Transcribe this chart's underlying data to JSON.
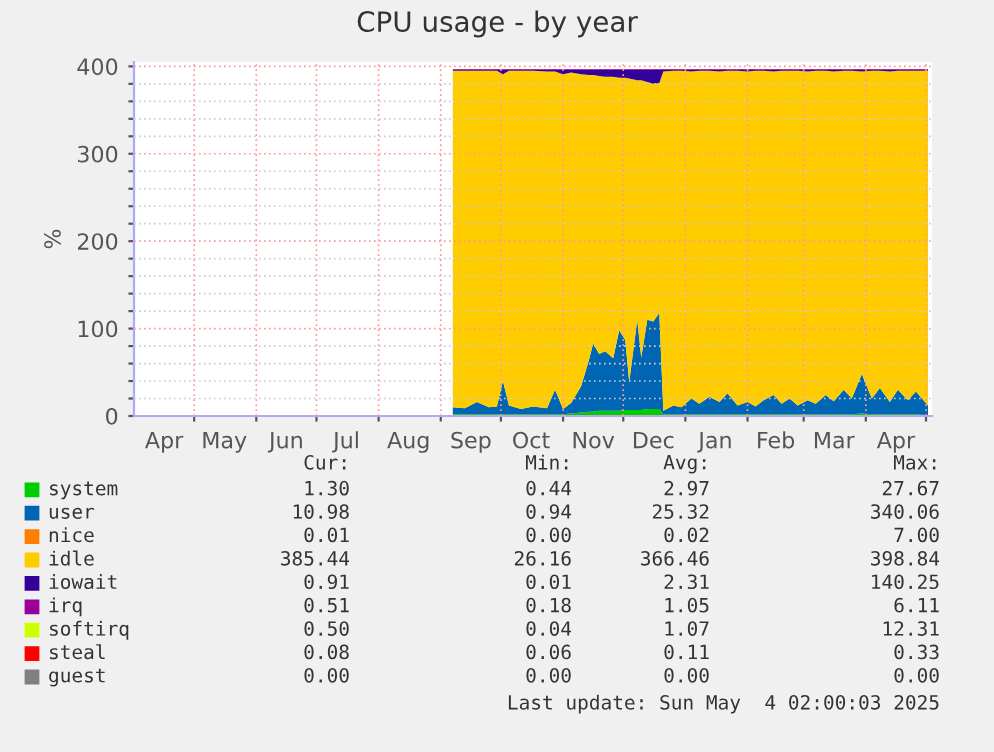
{
  "chart_data": {
    "type": "area",
    "stacked": true,
    "title": "CPU usage - by year",
    "ylabel": "%",
    "x": [
      "2024-09-07",
      "2024-09-13",
      "2024-09-19",
      "2024-09-25",
      "2024-09-29",
      "2024-10-02",
      "2024-10-05",
      "2024-10-11",
      "2024-10-17",
      "2024-10-24",
      "2024-10-28",
      "2024-11-01",
      "2024-11-05",
      "2024-11-10",
      "2024-11-14",
      "2024-11-16",
      "2024-11-19",
      "2024-11-22",
      "2024-11-26",
      "2024-11-29",
      "2024-12-02",
      "2024-12-04",
      "2024-12-08",
      "2024-12-10",
      "2024-12-13",
      "2024-12-16",
      "2024-12-19",
      "2024-12-21",
      "2024-12-26",
      "2024-12-30",
      "2025-01-04",
      "2025-01-08",
      "2025-01-13",
      "2025-01-18",
      "2025-01-22",
      "2025-01-27",
      "2025-02-01",
      "2025-02-05",
      "2025-02-09",
      "2025-02-14",
      "2025-02-18",
      "2025-02-22",
      "2025-02-26",
      "2025-03-03",
      "2025-03-07",
      "2025-03-12",
      "2025-03-16",
      "2025-03-21",
      "2025-03-25",
      "2025-03-30",
      "2025-04-04",
      "2025-04-08",
      "2025-04-13",
      "2025-04-17",
      "2025-04-22",
      "2025-04-26",
      "2025-05-02"
    ],
    "xlim": [
      "2024-04-01",
      "2025-05-04"
    ],
    "xticks": [
      {
        "value": "2024-04-16",
        "label": "Apr"
      },
      {
        "value": "2024-05-16",
        "label": "May"
      },
      {
        "value": "2024-06-16",
        "label": "Jun"
      },
      {
        "value": "2024-07-16",
        "label": "Jul"
      },
      {
        "value": "2024-08-16",
        "label": "Aug"
      },
      {
        "value": "2024-09-16",
        "label": "Sep"
      },
      {
        "value": "2024-10-16",
        "label": "Oct"
      },
      {
        "value": "2024-11-16",
        "label": "Nov"
      },
      {
        "value": "2024-12-16",
        "label": "Dec"
      },
      {
        "value": "2025-01-16",
        "label": "Jan"
      },
      {
        "value": "2025-02-15",
        "label": "Feb"
      },
      {
        "value": "2025-03-16",
        "label": "Mar"
      },
      {
        "value": "2025-04-16",
        "label": "Apr"
      },
      {
        "value": "2024-05-01",
        "label": null
      },
      {
        "value": "2024-06-01",
        "label": null
      },
      {
        "value": "2024-07-01",
        "label": null
      },
      {
        "value": "2024-08-01",
        "label": null
      },
      {
        "value": "2024-09-01",
        "label": null
      },
      {
        "value": "2024-10-01",
        "label": null
      },
      {
        "value": "2024-11-01",
        "label": null
      },
      {
        "value": "2024-12-01",
        "label": null
      },
      {
        "value": "2025-01-01",
        "label": null
      },
      {
        "value": "2025-02-01",
        "label": null
      },
      {
        "value": "2025-03-01",
        "label": null
      },
      {
        "value": "2025-04-01",
        "label": null
      },
      {
        "value": "2025-05-01",
        "label": null
      }
    ],
    "ylim": [
      0,
      405
    ],
    "yticks": [
      0,
      100,
      200,
      300,
      400,
      {
        "value": 20,
        "label": null
      },
      {
        "value": 40,
        "label": null
      },
      {
        "value": 60,
        "label": null
      },
      {
        "value": 80,
        "label": null
      },
      {
        "value": 120,
        "label": null
      },
      {
        "value": 140,
        "label": null
      },
      {
        "value": 160,
        "label": null
      },
      {
        "value": 180,
        "label": null
      },
      {
        "value": 220,
        "label": null
      },
      {
        "value": 240,
        "label": null
      },
      {
        "value": 260,
        "label": null
      },
      {
        "value": 280,
        "label": null
      },
      {
        "value": 320,
        "label": null
      },
      {
        "value": 340,
        "label": null
      },
      {
        "value": 360,
        "label": null
      },
      {
        "value": 380,
        "label": null
      }
    ],
    "grid": true,
    "legend": "bottom",
    "series": [
      {
        "name": "system",
        "color": "#00cc00",
        "values": [
          2,
          2,
          2,
          2,
          2,
          2,
          2,
          2,
          2,
          2,
          2,
          2,
          3,
          4,
          5,
          5,
          6,
          6,
          6,
          6,
          7,
          7,
          7,
          7,
          8,
          8,
          8,
          2,
          2,
          2,
          2,
          2,
          2,
          2,
          2,
          2,
          2,
          2,
          2,
          2,
          2,
          2,
          2,
          2,
          2,
          2,
          2,
          2,
          2,
          3,
          2,
          2,
          2,
          2,
          2,
          2,
          1
        ]
      },
      {
        "name": "user",
        "color": "#0066b3",
        "values": [
          8,
          7,
          14,
          8,
          9,
          38,
          10,
          6,
          9,
          7,
          28,
          6,
          12,
          30,
          60,
          78,
          65,
          68,
          60,
          92,
          80,
          32,
          103,
          60,
          102,
          100,
          110,
          4,
          10,
          8,
          18,
          12,
          20,
          14,
          24,
          10,
          14,
          9,
          16,
          22,
          12,
          18,
          10,
          16,
          12,
          22,
          15,
          28,
          18,
          45,
          18,
          30,
          14,
          28,
          16,
          26,
          11
        ]
      },
      {
        "name": "nice",
        "color": "#ff8000",
        "values": [
          null,
          null,
          null,
          null,
          null,
          null,
          null,
          null,
          null,
          null,
          null,
          null,
          null,
          null,
          null,
          null,
          null,
          null,
          null,
          null,
          null,
          null,
          null,
          null,
          null,
          null,
          null,
          null,
          null,
          null,
          null,
          null,
          null,
          null,
          null,
          null,
          null,
          null,
          null,
          null,
          null,
          null,
          null,
          null,
          null,
          null,
          null,
          null,
          null,
          null,
          null,
          null,
          null,
          null,
          null,
          null,
          null
        ]
      },
      {
        "name": "idle",
        "color": "#ffcc00",
        "values": [
          385,
          386,
          379,
          385,
          384,
          351,
          383,
          387,
          384,
          385,
          364,
          383,
          378,
          357,
          325,
          307,
          318,
          314,
          322,
          289,
          300,
          347,
          274,
          317,
          272,
          272,
          263,
          388,
          383,
          385,
          374,
          381,
          373,
          378,
          369,
          383,
          378,
          384,
          377,
          370,
          381,
          375,
          383,
          376,
          381,
          371,
          377,
          365,
          375,
          346,
          375,
          363,
          378,
          365,
          377,
          367,
          383
        ]
      },
      {
        "name": "iowait",
        "color": "#330099",
        "values": [
          1,
          1,
          1,
          1,
          1,
          5,
          1,
          1,
          1,
          2,
          2,
          5,
          3,
          5,
          6,
          6,
          7,
          8,
          8,
          9,
          9,
          10,
          12,
          12,
          14,
          16,
          15,
          2,
          1,
          1,
          2,
          1,
          1,
          2,
          1,
          1,
          2,
          1,
          1,
          2,
          1,
          1,
          1,
          2,
          1,
          1,
          2,
          1,
          1,
          2,
          1,
          1,
          2,
          1,
          1,
          1,
          1
        ]
      },
      {
        "name": "irq",
        "color": "#990099",
        "values": [
          1,
          1,
          1,
          1,
          1,
          1,
          1,
          1,
          1,
          1,
          1,
          1,
          1,
          1,
          1,
          1,
          1,
          1,
          1,
          1,
          1,
          1,
          1,
          1,
          1,
          1,
          1,
          1,
          1,
          1,
          1,
          1,
          1,
          1,
          1,
          1,
          1,
          1,
          1,
          1,
          1,
          1,
          1,
          1,
          1,
          1,
          1,
          1,
          1,
          1,
          1,
          1,
          1,
          1,
          1,
          1,
          1
        ]
      },
      {
        "name": "softirq",
        "color": "#ccff00",
        "values": [
          null,
          null,
          null,
          null,
          null,
          null,
          null,
          null,
          null,
          null,
          null,
          null,
          null,
          null,
          null,
          null,
          null,
          null,
          null,
          null,
          null,
          null,
          null,
          null,
          null,
          null,
          null,
          null,
          null,
          null,
          null,
          null,
          null,
          null,
          null,
          null,
          null,
          null,
          null,
          null,
          null,
          null,
          null,
          null,
          null,
          null,
          null,
          null,
          null,
          null,
          null,
          null,
          null,
          null,
          null,
          null,
          null
        ]
      },
      {
        "name": "steal",
        "color": "#ff0000",
        "values": [
          null,
          null,
          null,
          null,
          null,
          null,
          null,
          null,
          null,
          null,
          null,
          null,
          null,
          null,
          null,
          null,
          null,
          null,
          null,
          null,
          null,
          null,
          null,
          null,
          null,
          null,
          null,
          null,
          null,
          null,
          null,
          null,
          null,
          null,
          null,
          null,
          null,
          null,
          null,
          null,
          null,
          null,
          null,
          null,
          null,
          null,
          null,
          null,
          null,
          null,
          null,
          null,
          null,
          null,
          null,
          null,
          null
        ]
      },
      {
        "name": "guest",
        "color": "#808080",
        "values": [
          null,
          null,
          null,
          null,
          null,
          null,
          null,
          null,
          null,
          null,
          null,
          null,
          null,
          null,
          null,
          null,
          null,
          null,
          null,
          null,
          null,
          null,
          null,
          null,
          null,
          null,
          null,
          null,
          null,
          null,
          null,
          null,
          null,
          null,
          null,
          null,
          null,
          null,
          null,
          null,
          null,
          null,
          null,
          null,
          null,
          null,
          null,
          null,
          null,
          null,
          null,
          null,
          null,
          null,
          null,
          null,
          null
        ]
      }
    ],
    "annotations": [
      "Cur:",
      "Min:",
      "Avg:",
      "Max:",
      "1.30",
      "0.44",
      "2.97",
      "27.67",
      "10.98",
      "0.94",
      "25.32",
      "340.06",
      "0.01",
      "0.00",
      "0.02",
      "7.00",
      "385.44",
      "26.16",
      "366.46",
      "398.84",
      "0.91",
      "0.01",
      "2.31",
      "140.25",
      "0.51",
      "0.18",
      "1.05",
      "6.11",
      "0.50",
      "0.04",
      "1.07",
      "12.31",
      "0.08",
      "0.06",
      "0.11",
      "0.33",
      "0.00",
      "0.00",
      "0.00",
      "0.00",
      "Last update: Sun May  4 02:00:03 2025"
    ]
  }
}
